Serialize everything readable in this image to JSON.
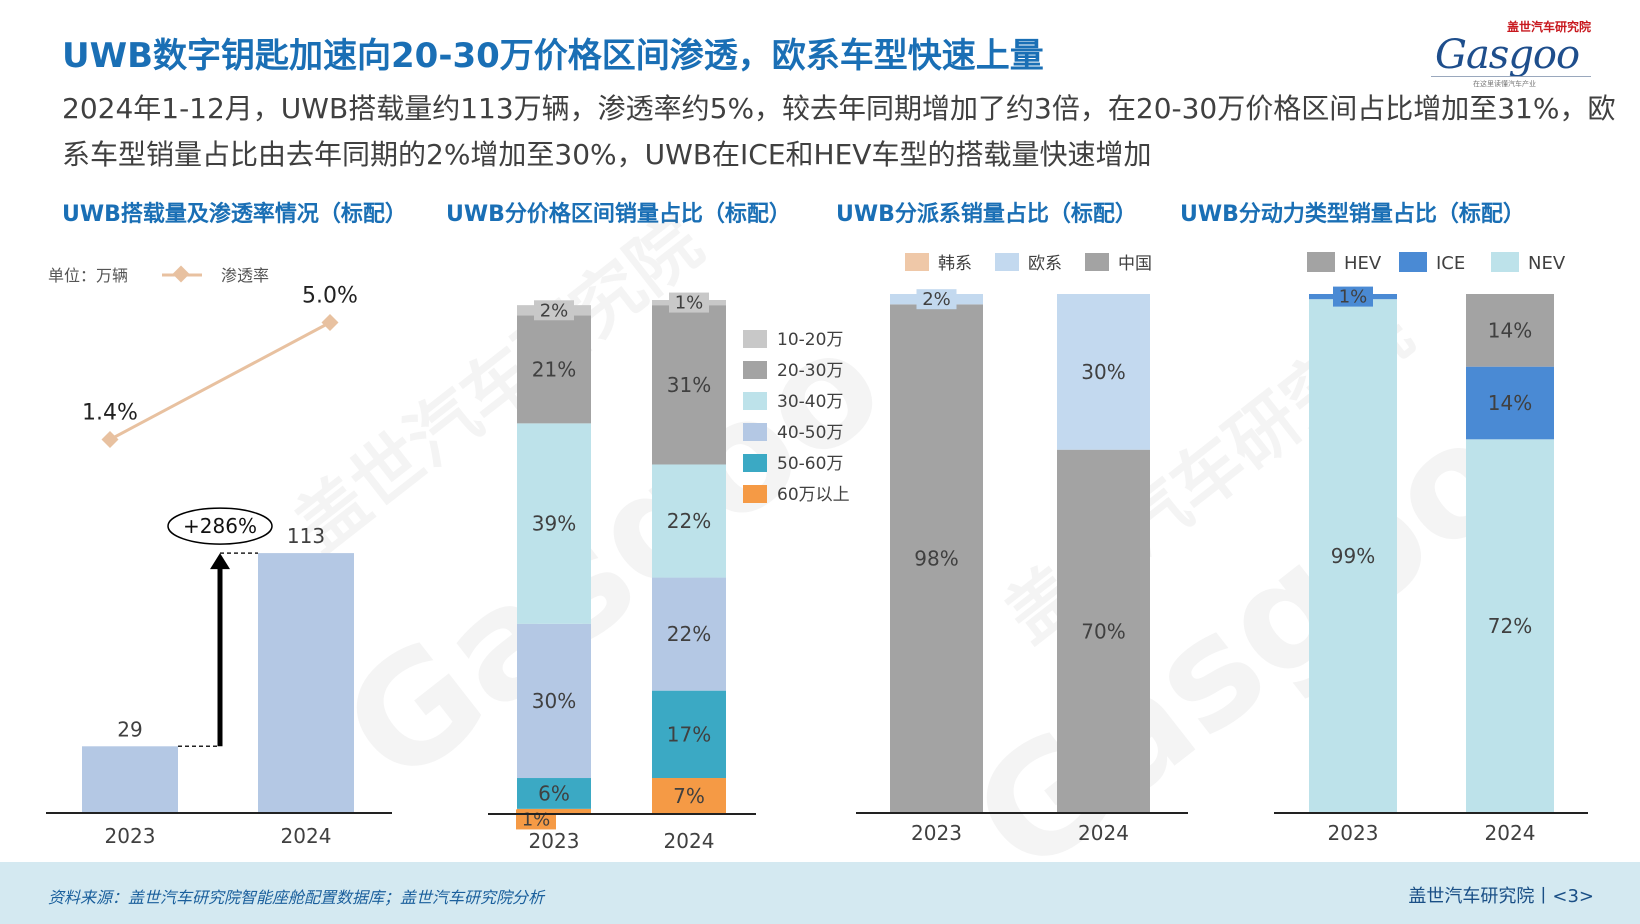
{
  "header": {
    "title": "UWB数字钥匙加速向20-30万价格区间渗透，欧系车型快速上量",
    "subtitle": "2024年1-12月，UWB搭载量约113万辆，渗透率约5%，较去年同期增加了约3倍，在20-30万价格区间占比增加至31%，欧系车型销量占比由去年同期的2%增加至30%，UWB在ICE和HEV车型的搭载量快速增加"
  },
  "logo": {
    "cn": "盖世汽车研究院",
    "mark": "Gasgoo",
    "tag": "在这里读懂汽车产业"
  },
  "watermark": {
    "line1": "盖世汽车研究院",
    "brand": "Gasgoo"
  },
  "footer": {
    "source": "资料来源：盖世汽车研究院智能座舱配置数据库；盖世汽车研究院分析",
    "page": "盖世汽车研究院丨<3>"
  },
  "colors": {
    "accent": "#1a6fb5",
    "bar_light": "#b4c8e4",
    "penetration": "#e8c1a0"
  },
  "chart_data": [
    {
      "type": "bar",
      "title": "UWB搭载量及渗透率情况（标配）",
      "unit_label": "单位：万辆",
      "categories": [
        "2023",
        "2024"
      ],
      "series": [
        {
          "name": "UWB搭载量",
          "values": [
            29,
            113
          ],
          "labels": [
            "29",
            "113"
          ]
        },
        {
          "name": "渗透率",
          "type": "line",
          "values": [
            1.4,
            5.0
          ],
          "labels": [
            "1.4%",
            "5.0%"
          ]
        }
      ],
      "legend": [
        "渗透率"
      ],
      "annotation": "+286%"
    },
    {
      "type": "bar",
      "stacked": true,
      "title": "UWB分价格区间销量占比（标配）",
      "categories": [
        "2023",
        "2024"
      ],
      "series": [
        {
          "name": "60万以上",
          "color": "#f59a45",
          "values": [
            1,
            7
          ]
        },
        {
          "name": "50-60万",
          "color": "#3ba9c4",
          "values": [
            6,
            17
          ]
        },
        {
          "name": "40-50万",
          "color": "#b4c8e4",
          "values": [
            30,
            22
          ]
        },
        {
          "name": "30-40万",
          "color": "#bde2ea",
          "values": [
            39,
            22
          ]
        },
        {
          "name": "20-30万",
          "color": "#a3a3a3",
          "values": [
            21,
            31
          ]
        },
        {
          "name": "10-20万",
          "color": "#c8c8c8",
          "values": [
            2,
            1
          ]
        }
      ],
      "legend_order": [
        "10-20万",
        "20-30万",
        "30-40万",
        "40-50万",
        "50-60万",
        "60万以上"
      ]
    },
    {
      "type": "bar",
      "stacked": true,
      "title": "UWB分派系销量占比（标配）",
      "categories": [
        "2023",
        "2024"
      ],
      "series": [
        {
          "name": "中国",
          "color": "#a3a3a3",
          "values": [
            98,
            70
          ]
        },
        {
          "name": "欧系",
          "color": "#c3d9ef",
          "values": [
            2,
            30
          ]
        },
        {
          "name": "韩系",
          "color": "#efc8a8",
          "values": [
            0,
            0
          ]
        }
      ],
      "legend_order": [
        "韩系",
        "欧系",
        "中国"
      ]
    },
    {
      "type": "bar",
      "stacked": true,
      "title": "UWB分动力类型销量占比（标配）",
      "categories": [
        "2023",
        "2024"
      ],
      "series": [
        {
          "name": "NEV",
          "color": "#bde2ea",
          "values": [
            99,
            72
          ]
        },
        {
          "name": "ICE",
          "color": "#4a8ad4",
          "values": [
            1,
            14
          ]
        },
        {
          "name": "HEV",
          "color": "#a3a3a3",
          "values": [
            0,
            14
          ]
        }
      ],
      "legend_order": [
        "HEV",
        "ICE",
        "NEV"
      ]
    }
  ]
}
